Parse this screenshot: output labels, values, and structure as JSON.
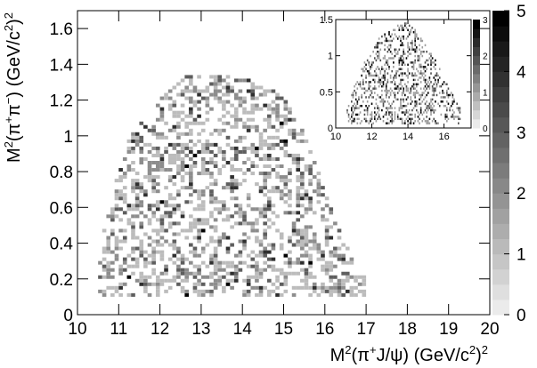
{
  "chart_data": [
    {
      "type": "heatmap",
      "role": "main",
      "title": "",
      "xlabel": {
        "pre": "M",
        "sq": "2",
        "body1": "(π",
        "plus": "+",
        "body2": "J/ψ) (GeV/c",
        "c2": "2",
        "close": ")",
        "tail2": "2"
      },
      "ylabel": {
        "pre": "M",
        "sq": "2",
        "body1": "(π",
        "plus": "+",
        "body2": "π",
        "minus": "−",
        "body3": ") (GeV/c",
        "c2": "2",
        "close": ")",
        "tail2": "2"
      },
      "xlim": [
        10,
        20
      ],
      "ylim": [
        0,
        1.7
      ],
      "xticks": [
        10,
        11,
        12,
        13,
        14,
        15,
        16,
        17,
        18,
        19,
        20
      ],
      "yticks": [
        0,
        0.2,
        0.4,
        0.6,
        0.8,
        1,
        1.2,
        1.4,
        1.6
      ],
      "ytick_labels": [
        "0",
        "0.2",
        "0.4",
        "0.6",
        "0.8",
        "1",
        "1.2",
        "1.4",
        "1.6"
      ],
      "bin_width_x": 0.1,
      "bin_width_y": 0.02,
      "zlim": [
        0,
        5
      ],
      "zticks": [
        0,
        1,
        2,
        3,
        4,
        5
      ],
      "palette": "grayscale",
      "description_of_region": "dense populated region bounded by x 10.5–16.9 and y 0.1–1.35, occupancy decreasing toward upper edge",
      "density_envelope": {
        "x_range": [
          10.5,
          16.9
        ],
        "y_floor": 0.1,
        "y_top_at_x": [
          [
            10.5,
            0.2
          ],
          [
            10.7,
            0.55
          ],
          [
            11.0,
            0.85
          ],
          [
            11.4,
            1.05
          ],
          [
            12.0,
            1.2
          ],
          [
            12.6,
            1.33
          ],
          [
            13.5,
            1.33
          ],
          [
            14.4,
            1.3
          ],
          [
            15.0,
            1.2
          ],
          [
            15.5,
            1.0
          ],
          [
            15.9,
            0.75
          ],
          [
            16.3,
            0.5
          ],
          [
            16.7,
            0.3
          ],
          [
            16.9,
            0.2
          ]
        ]
      }
    },
    {
      "type": "heatmap",
      "role": "inset",
      "title": "",
      "xlim": [
        10,
        17.5
      ],
      "ylim": [
        0,
        1.5
      ],
      "xticks": [
        10,
        12,
        14,
        16
      ],
      "yticks": [
        0,
        0.5,
        1,
        1.5
      ],
      "ytick_labels": [
        "0",
        "0.5",
        "1",
        "1.5"
      ],
      "zlim": [
        0,
        3
      ],
      "zticks": [
        0,
        1,
        2,
        3
      ],
      "palette": "grayscale",
      "density_envelope": {
        "x_range": [
          10.6,
          16.9
        ],
        "y_floor": 0.05,
        "y_top_at_x": [
          [
            10.6,
            0.2
          ],
          [
            11.0,
            0.55
          ],
          [
            11.6,
            0.9
          ],
          [
            12.3,
            1.2
          ],
          [
            13.0,
            1.35
          ],
          [
            13.8,
            1.45
          ],
          [
            14.5,
            1.35
          ],
          [
            15.2,
            1.1
          ],
          [
            15.8,
            0.8
          ],
          [
            16.4,
            0.5
          ],
          [
            16.9,
            0.25
          ]
        ]
      }
    }
  ]
}
